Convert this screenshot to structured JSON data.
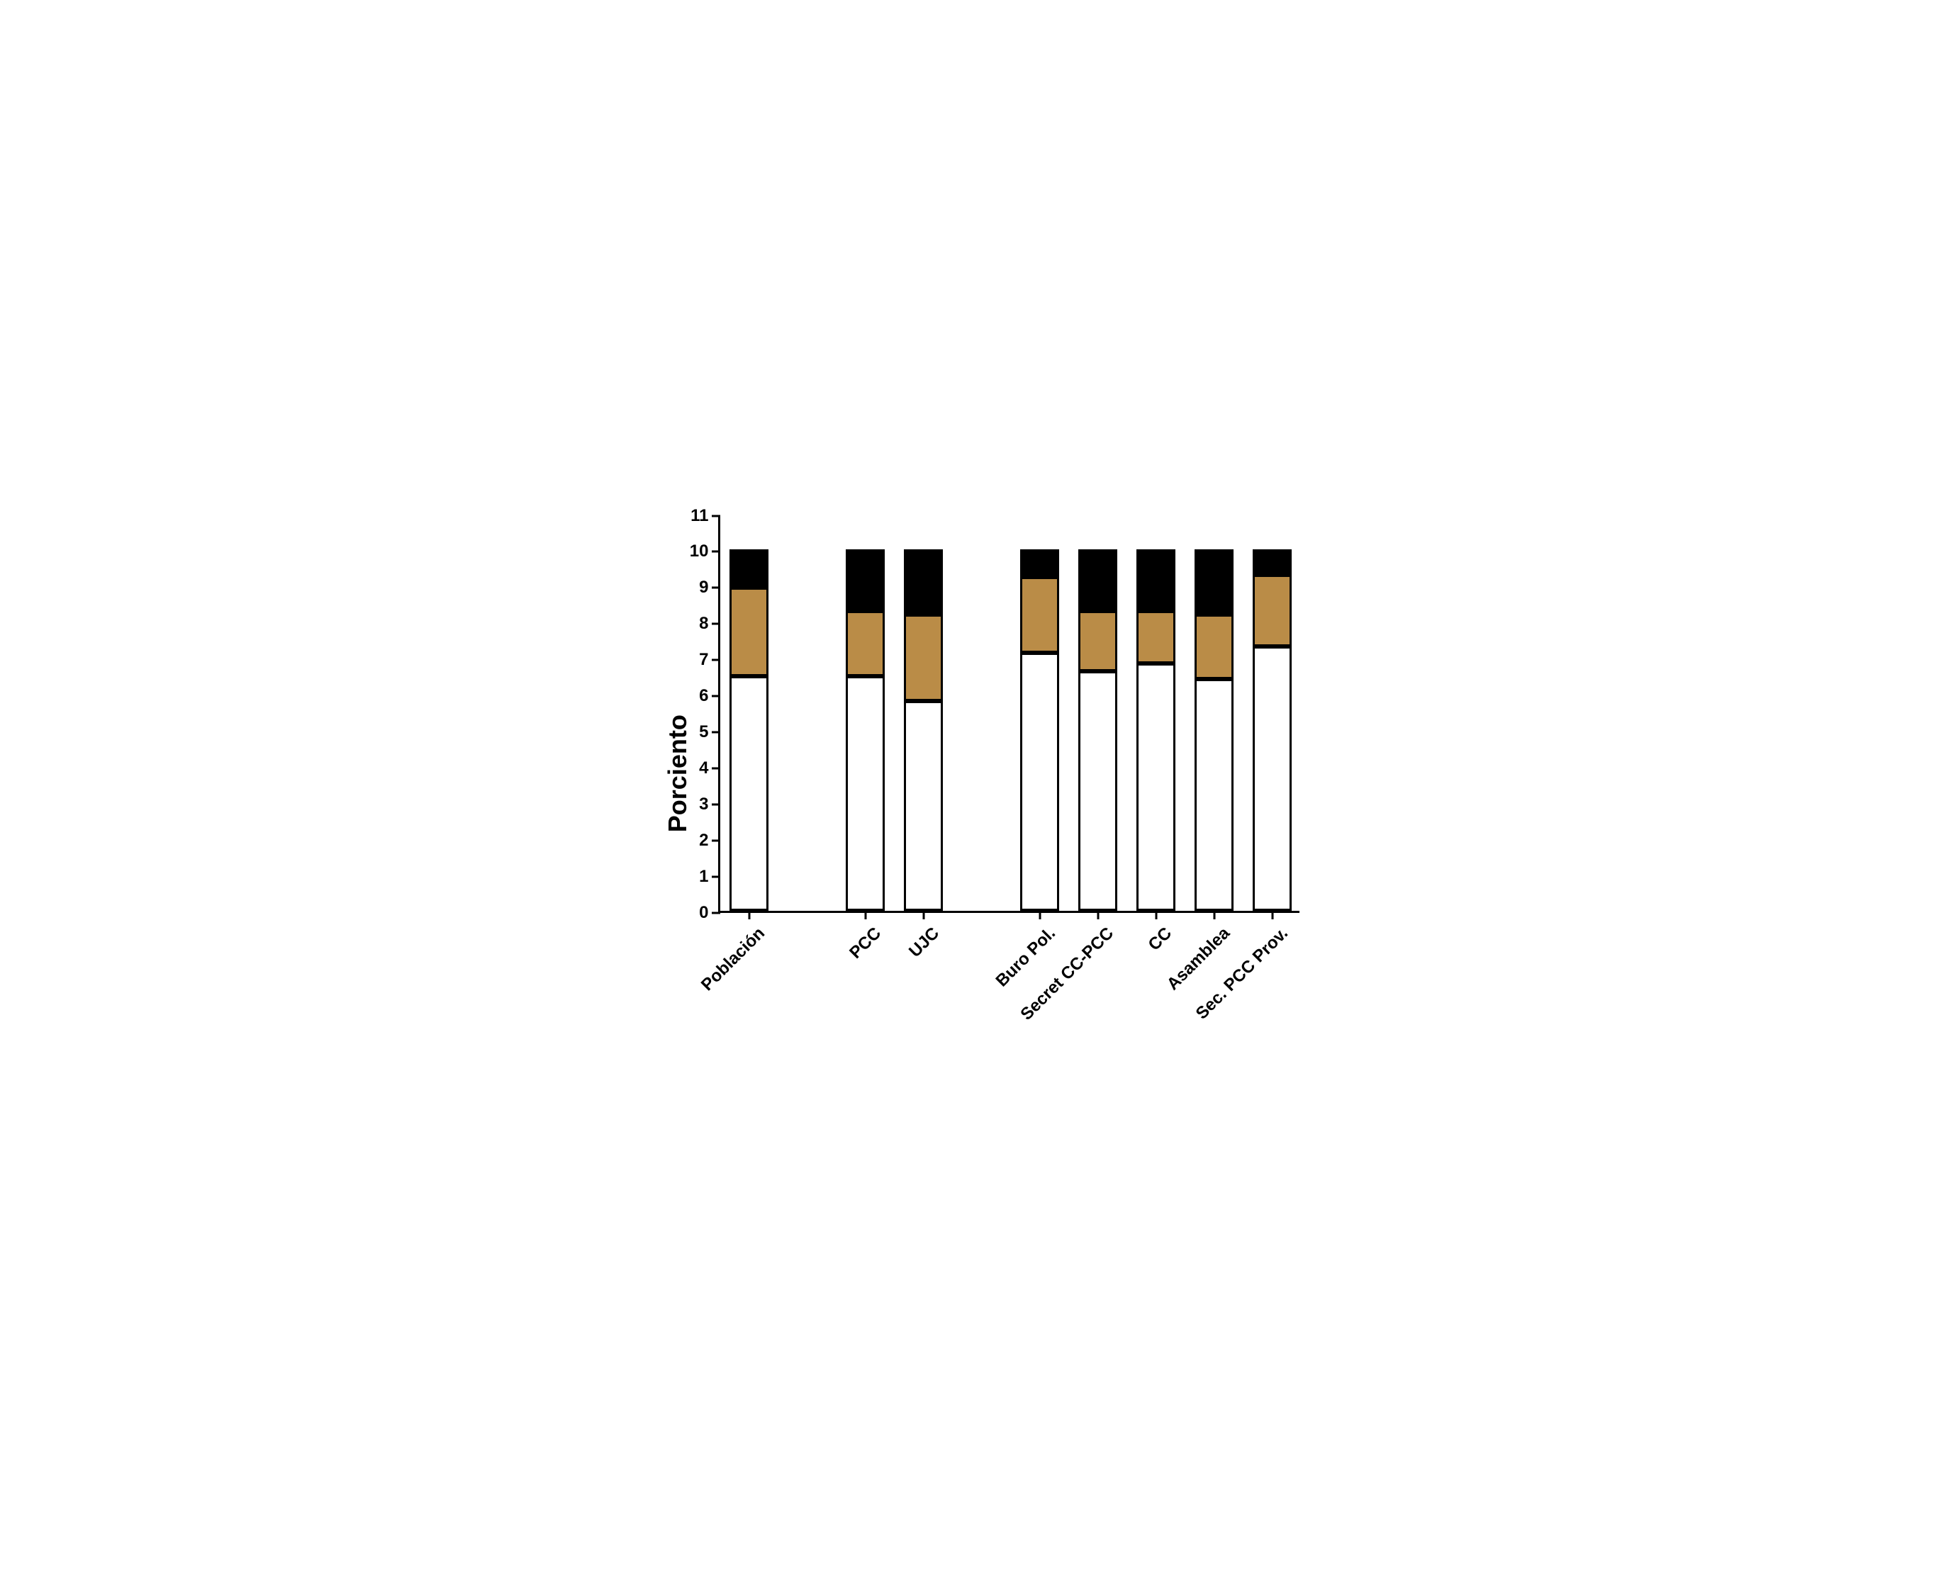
{
  "chart": {
    "type": "stacked-bar",
    "y_axis": {
      "title": "Porciento",
      "ylim": [
        0,
        11
      ],
      "ytick_step": 1,
      "ticks": [
        0,
        1,
        2,
        3,
        4,
        5,
        6,
        7,
        8,
        9,
        10,
        11
      ]
    },
    "categories": [
      "Población",
      "",
      "PCC",
      "UJC",
      "",
      "Buro Pol.",
      "Secret CC-PCC",
      "CC",
      "Asamblea",
      "Sec. PCC Prov."
    ],
    "series_colors": [
      "#ffffff",
      "#ba8c47",
      "#000000"
    ],
    "total_height": 10,
    "background_color": "#ffffff",
    "axis_color": "#000000",
    "axis_width": 3.5,
    "bar_border_color": "#000000",
    "bar_border_width": 3,
    "label_fontsize": 24,
    "axis_title_fontsize": 36,
    "bar_rel_width": 0.66,
    "data": [
      {
        "label": "Población",
        "segments": [
          6.5,
          2.45,
          1.05
        ]
      },
      {
        "label": "",
        "segments": null
      },
      {
        "label": "PCC",
        "segments": [
          6.5,
          1.8,
          1.7
        ]
      },
      {
        "label": "UJC",
        "segments": [
          5.8,
          2.4,
          1.8
        ]
      },
      {
        "label": "",
        "segments": null
      },
      {
        "label": "Buro Pol.",
        "segments": [
          7.15,
          2.1,
          0.75
        ]
      },
      {
        "label": "Secret CC-PCC",
        "segments": [
          6.63,
          1.67,
          1.7
        ]
      },
      {
        "label": "CC",
        "segments": [
          6.85,
          1.45,
          1.7
        ]
      },
      {
        "label": "Asamblea",
        "segments": [
          6.42,
          1.78,
          1.8
        ]
      },
      {
        "label": "Sec. PCC Prov.",
        "segments": [
          7.32,
          1.98,
          0.7
        ]
      }
    ]
  }
}
